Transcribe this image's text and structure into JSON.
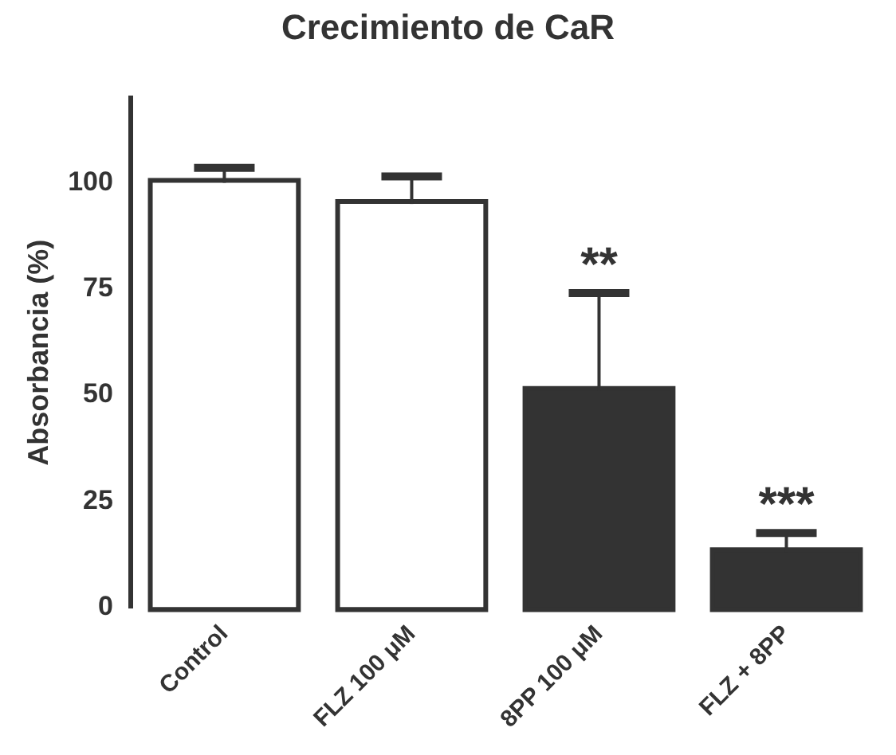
{
  "chart_data": {
    "type": "bar",
    "title": "Crecimiento de CaR",
    "ylabel": "Absorbancia (%)",
    "categories": [
      "Control",
      "FLZ 100 μM",
      "8PP 100 μM",
      "FLZ + 8PP"
    ],
    "values": [
      100,
      95,
      51,
      13
    ],
    "colors": [
      "#ffffff",
      "#ffffff",
      "#333333",
      "#333333"
    ],
    "errors": [
      [
        100,
        103.5
      ],
      [
        95,
        101.5
      ],
      [
        51,
        74
      ],
      [
        13,
        17.5
      ]
    ],
    "ylim": [
      0,
      120
    ],
    "yticks": [
      0,
      25,
      50,
      75,
      100
    ],
    "grid": false,
    "legend": false,
    "annotations": [
      "**",
      "***"
    ]
  }
}
